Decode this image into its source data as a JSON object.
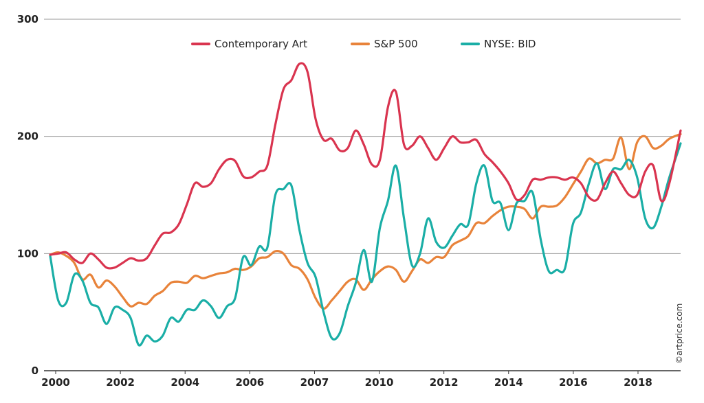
{
  "chart_data": {
    "type": "line",
    "title": "",
    "xlabel": "",
    "ylabel": "",
    "ylim": [
      0,
      300
    ],
    "xlim": [
      2000,
      2019.6
    ],
    "grid": "horizontal",
    "legend_position": "top",
    "y_ticks": [
      0,
      100,
      200,
      300
    ],
    "x_ticks": [
      "2000",
      "2002",
      "2004",
      "2006",
      "2007",
      "2010",
      "2012",
      "2014",
      "2016",
      "2018"
    ],
    "series": [
      {
        "name": "Contemporary Art",
        "color": "#d9344f",
        "points": [
          [
            2000.0,
            99
          ],
          [
            2000.25,
            100
          ],
          [
            2000.5,
            101
          ],
          [
            2000.75,
            95
          ],
          [
            2001.0,
            92
          ],
          [
            2001.25,
            100
          ],
          [
            2001.5,
            95
          ],
          [
            2001.75,
            88
          ],
          [
            2002.0,
            88
          ],
          [
            2002.25,
            92
          ],
          [
            2002.5,
            96
          ],
          [
            2002.75,
            94
          ],
          [
            2003.0,
            96
          ],
          [
            2003.25,
            107
          ],
          [
            2003.5,
            117
          ],
          [
            2003.75,
            118
          ],
          [
            2004.0,
            125
          ],
          [
            2004.25,
            142
          ],
          [
            2004.5,
            160
          ],
          [
            2004.75,
            157
          ],
          [
            2005.0,
            160
          ],
          [
            2005.25,
            172
          ],
          [
            2005.5,
            180
          ],
          [
            2005.75,
            179
          ],
          [
            2006.0,
            166
          ],
          [
            2006.25,
            165
          ],
          [
            2006.5,
            170
          ],
          [
            2006.75,
            175
          ],
          [
            2007.0,
            210
          ],
          [
            2007.25,
            240
          ],
          [
            2007.5,
            248
          ],
          [
            2007.75,
            262
          ],
          [
            2008.0,
            255
          ],
          [
            2008.25,
            215
          ],
          [
            2008.5,
            197
          ],
          [
            2008.75,
            198
          ],
          [
            2009.0,
            188
          ],
          [
            2009.25,
            190
          ],
          [
            2009.5,
            205
          ],
          [
            2009.75,
            193
          ],
          [
            2010.0,
            176
          ],
          [
            2010.25,
            180
          ],
          [
            2010.5,
            225
          ],
          [
            2010.75,
            238
          ],
          [
            2011.0,
            193
          ],
          [
            2011.25,
            192
          ],
          [
            2011.5,
            200
          ],
          [
            2011.75,
            190
          ],
          [
            2012.0,
            180
          ],
          [
            2012.25,
            190
          ],
          [
            2012.5,
            200
          ],
          [
            2012.75,
            195
          ],
          [
            2013.0,
            195
          ],
          [
            2013.25,
            197
          ],
          [
            2013.5,
            185
          ],
          [
            2013.75,
            178
          ],
          [
            2014.0,
            170
          ],
          [
            2014.25,
            160
          ],
          [
            2014.5,
            146
          ],
          [
            2014.75,
            150
          ],
          [
            2015.0,
            163
          ],
          [
            2015.25,
            163
          ],
          [
            2015.5,
            165
          ],
          [
            2015.75,
            165
          ],
          [
            2016.0,
            163
          ],
          [
            2016.25,
            165
          ],
          [
            2016.5,
            160
          ],
          [
            2016.75,
            148
          ],
          [
            2017.0,
            146
          ],
          [
            2017.25,
            160
          ],
          [
            2017.5,
            170
          ],
          [
            2017.75,
            160
          ],
          [
            2018.0,
            150
          ],
          [
            2018.25,
            150
          ],
          [
            2018.5,
            170
          ],
          [
            2018.75,
            175
          ],
          [
            2019.0,
            145
          ],
          [
            2019.25,
            160
          ],
          [
            2019.6,
            205
          ]
        ]
      },
      {
        "name": "S&P 500",
        "color": "#e8833a",
        "points": [
          [
            2000.0,
            99
          ],
          [
            2000.25,
            101
          ],
          [
            2000.5,
            98
          ],
          [
            2000.75,
            92
          ],
          [
            2001.0,
            78
          ],
          [
            2001.25,
            82
          ],
          [
            2001.5,
            71
          ],
          [
            2001.75,
            77
          ],
          [
            2002.0,
            72
          ],
          [
            2002.25,
            63
          ],
          [
            2002.5,
            55
          ],
          [
            2002.75,
            58
          ],
          [
            2003.0,
            57
          ],
          [
            2003.25,
            64
          ],
          [
            2003.5,
            68
          ],
          [
            2003.75,
            75
          ],
          [
            2004.0,
            76
          ],
          [
            2004.25,
            75
          ],
          [
            2004.5,
            81
          ],
          [
            2004.75,
            79
          ],
          [
            2005.0,
            81
          ],
          [
            2005.25,
            83
          ],
          [
            2005.5,
            84
          ],
          [
            2005.75,
            87
          ],
          [
            2006.0,
            86
          ],
          [
            2006.25,
            89
          ],
          [
            2006.5,
            96
          ],
          [
            2006.75,
            97
          ],
          [
            2007.0,
            102
          ],
          [
            2007.25,
            100
          ],
          [
            2007.5,
            90
          ],
          [
            2007.75,
            87
          ],
          [
            2008.0,
            78
          ],
          [
            2008.25,
            62
          ],
          [
            2008.5,
            53
          ],
          [
            2008.75,
            60
          ],
          [
            2009.0,
            68
          ],
          [
            2009.25,
            76
          ],
          [
            2009.5,
            78
          ],
          [
            2009.75,
            69
          ],
          [
            2010.0,
            78
          ],
          [
            2010.25,
            85
          ],
          [
            2010.5,
            89
          ],
          [
            2010.75,
            86
          ],
          [
            2011.0,
            76
          ],
          [
            2011.25,
            85
          ],
          [
            2011.5,
            95
          ],
          [
            2011.75,
            92
          ],
          [
            2012.0,
            97
          ],
          [
            2012.25,
            97
          ],
          [
            2012.5,
            107
          ],
          [
            2012.75,
            111
          ],
          [
            2013.0,
            115
          ],
          [
            2013.25,
            126
          ],
          [
            2013.5,
            126
          ],
          [
            2013.75,
            132
          ],
          [
            2014.0,
            137
          ],
          [
            2014.25,
            140
          ],
          [
            2014.5,
            140
          ],
          [
            2014.75,
            138
          ],
          [
            2015.0,
            130
          ],
          [
            2015.25,
            140
          ],
          [
            2015.5,
            140
          ],
          [
            2015.75,
            141
          ],
          [
            2016.0,
            148
          ],
          [
            2016.25,
            159
          ],
          [
            2016.5,
            170
          ],
          [
            2016.75,
            181
          ],
          [
            2017.0,
            177
          ],
          [
            2017.25,
            180
          ],
          [
            2017.5,
            181
          ],
          [
            2017.75,
            199
          ],
          [
            2018.0,
            172
          ],
          [
            2018.25,
            195
          ],
          [
            2018.5,
            200
          ],
          [
            2018.75,
            190
          ],
          [
            2019.0,
            192
          ],
          [
            2019.25,
            198
          ],
          [
            2019.6,
            202
          ]
        ]
      },
      {
        "name": "NYSE: BID",
        "color": "#1aaea6",
        "points": [
          [
            2000.0,
            98
          ],
          [
            2000.25,
            60
          ],
          [
            2000.5,
            58
          ],
          [
            2000.75,
            82
          ],
          [
            2001.0,
            77
          ],
          [
            2001.25,
            58
          ],
          [
            2001.5,
            54
          ],
          [
            2001.75,
            40
          ],
          [
            2002.0,
            54
          ],
          [
            2002.25,
            52
          ],
          [
            2002.5,
            45
          ],
          [
            2002.75,
            22
          ],
          [
            2003.0,
            30
          ],
          [
            2003.25,
            25
          ],
          [
            2003.5,
            30
          ],
          [
            2003.75,
            45
          ],
          [
            2004.0,
            42
          ],
          [
            2004.25,
            52
          ],
          [
            2004.5,
            52
          ],
          [
            2004.75,
            60
          ],
          [
            2005.0,
            55
          ],
          [
            2005.25,
            45
          ],
          [
            2005.5,
            55
          ],
          [
            2005.75,
            62
          ],
          [
            2006.0,
            97
          ],
          [
            2006.25,
            90
          ],
          [
            2006.5,
            106
          ],
          [
            2006.75,
            105
          ],
          [
            2007.0,
            150
          ],
          [
            2007.25,
            155
          ],
          [
            2007.5,
            158
          ],
          [
            2007.75,
            120
          ],
          [
            2008.0,
            92
          ],
          [
            2008.25,
            80
          ],
          [
            2008.5,
            50
          ],
          [
            2008.75,
            28
          ],
          [
            2009.0,
            32
          ],
          [
            2009.25,
            55
          ],
          [
            2009.5,
            75
          ],
          [
            2009.75,
            103
          ],
          [
            2010.0,
            76
          ],
          [
            2010.25,
            122
          ],
          [
            2010.5,
            145
          ],
          [
            2010.75,
            175
          ],
          [
            2011.0,
            130
          ],
          [
            2011.25,
            90
          ],
          [
            2011.5,
            100
          ],
          [
            2011.75,
            130
          ],
          [
            2012.0,
            110
          ],
          [
            2012.25,
            105
          ],
          [
            2012.5,
            115
          ],
          [
            2012.75,
            125
          ],
          [
            2013.0,
            125
          ],
          [
            2013.25,
            160
          ],
          [
            2013.5,
            175
          ],
          [
            2013.75,
            145
          ],
          [
            2014.0,
            143
          ],
          [
            2014.25,
            120
          ],
          [
            2014.5,
            143
          ],
          [
            2014.75,
            145
          ],
          [
            2015.0,
            152
          ],
          [
            2015.25,
            112
          ],
          [
            2015.5,
            85
          ],
          [
            2015.75,
            86
          ],
          [
            2016.0,
            87
          ],
          [
            2016.25,
            125
          ],
          [
            2016.5,
            135
          ],
          [
            2016.75,
            160
          ],
          [
            2017.0,
            177
          ],
          [
            2017.25,
            155
          ],
          [
            2017.5,
            172
          ],
          [
            2017.75,
            172
          ],
          [
            2018.0,
            180
          ],
          [
            2018.25,
            165
          ],
          [
            2018.5,
            130
          ],
          [
            2018.75,
            122
          ],
          [
            2019.0,
            140
          ],
          [
            2019.25,
            165
          ],
          [
            2019.6,
            194
          ]
        ]
      }
    ]
  },
  "credit": "©artprice.com"
}
